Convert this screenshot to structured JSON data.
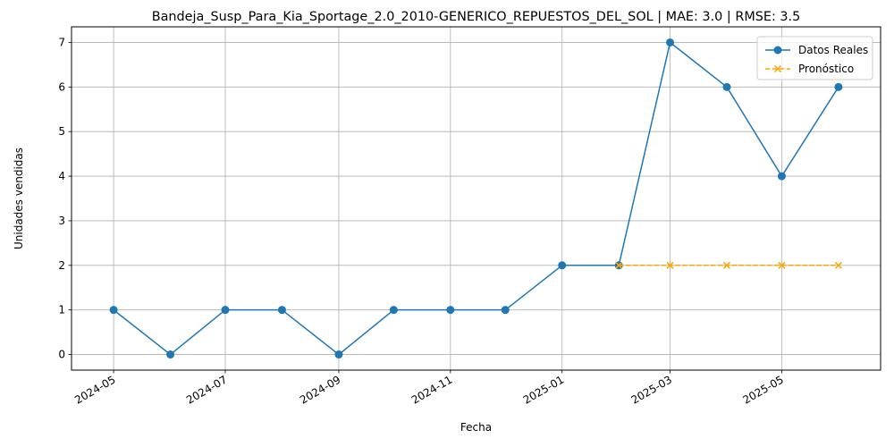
{
  "chart_data": {
    "type": "line",
    "title": "Bandeja_Susp_Para_Kia_Sportage_2.0_2010-GENERICO_REPUESTOS_DEL_SOL | MAE: 3.0 | RMSE: 3.5",
    "xlabel": "Fecha",
    "ylabel": "Unidades vendidas",
    "ylim": [
      -0.35,
      7.35
    ],
    "xlim": [
      "2024-04-08",
      "2025-06-24"
    ],
    "yticks": [
      0,
      1,
      2,
      3,
      4,
      5,
      6,
      7
    ],
    "xticks": [
      "2024-05-01",
      "2024-07-01",
      "2024-09-01",
      "2024-11-01",
      "2025-01-01",
      "2025-03-01",
      "2025-05-01"
    ],
    "xtick_labels": [
      "2024-05",
      "2024-07",
      "2024-09",
      "2024-11",
      "2025-01",
      "2025-03",
      "2025-05"
    ],
    "grid": true,
    "legend_position": "top-right",
    "series": [
      {
        "name": "Datos Reales",
        "color": "#1f77b4",
        "style": "solid",
        "marker": "circle",
        "x": [
          "2024-05-01",
          "2024-06-01",
          "2024-07-01",
          "2024-08-01",
          "2024-09-01",
          "2024-10-01",
          "2024-11-01",
          "2024-12-01",
          "2025-01-01",
          "2025-02-01",
          "2025-03-01",
          "2025-04-01",
          "2025-05-01",
          "2025-06-01"
        ],
        "values": [
          1,
          0,
          1,
          1,
          0,
          1,
          1,
          1,
          2,
          2,
          7,
          6,
          4,
          6
        ]
      },
      {
        "name": "Pronóstico",
        "color": "#ffa500",
        "style": "dashed",
        "marker": "x",
        "x": [
          "2025-02-01",
          "2025-03-01",
          "2025-04-01",
          "2025-05-01",
          "2025-06-01"
        ],
        "values": [
          2,
          2,
          2,
          2,
          2
        ]
      }
    ]
  }
}
